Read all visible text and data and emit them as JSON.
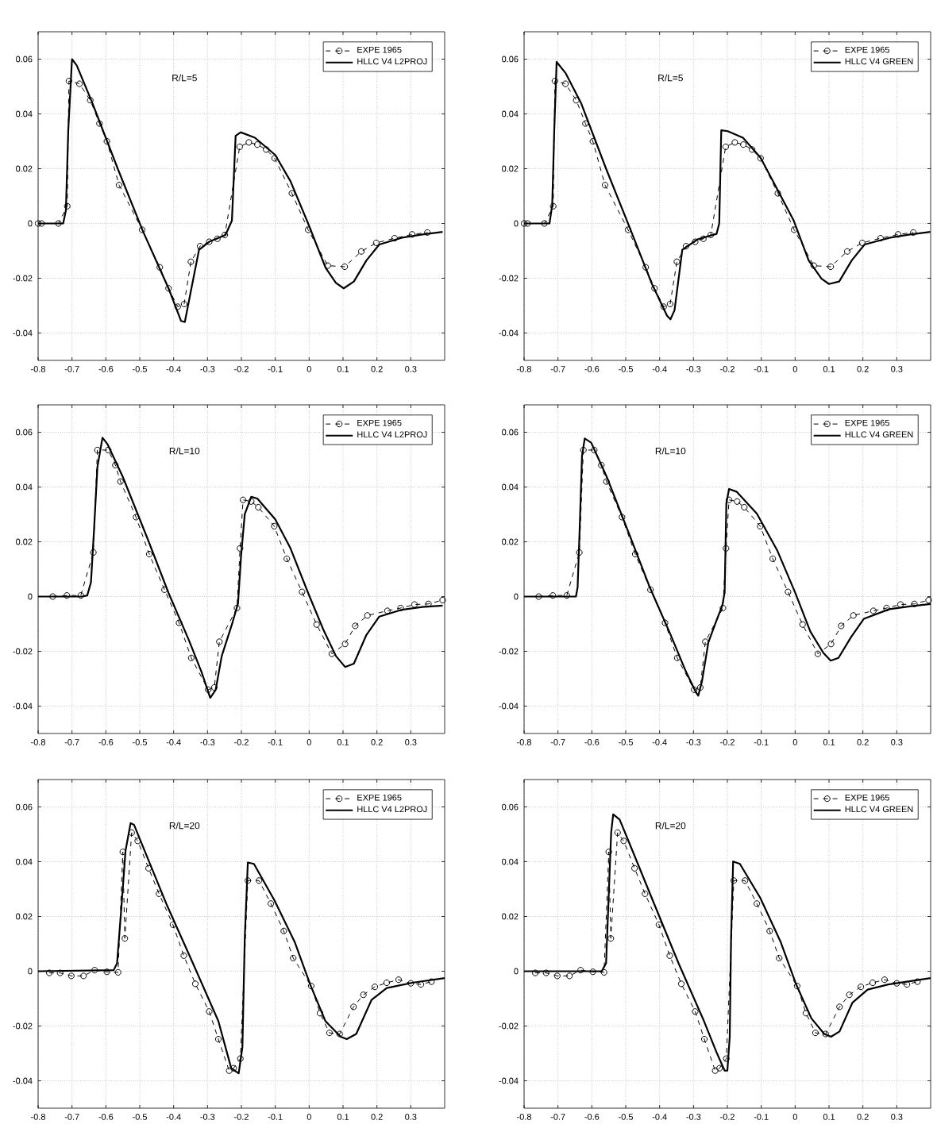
{
  "chart_data": [
    {
      "type": "line",
      "xlim": [
        -0.8,
        0.4
      ],
      "ylim": [
        -0.05,
        0.07
      ],
      "xticks": [
        -0.8,
        -0.7,
        -0.6,
        -0.5,
        -0.4,
        -0.3,
        -0.2,
        -0.1,
        0,
        0.1,
        0.2,
        0.3
      ],
      "yticks": [
        -0.04,
        -0.02,
        0,
        0.02,
        0.04,
        0.06
      ],
      "grid": true,
      "legend": "top right",
      "annotations": [
        "R/L=5"
      ],
      "series": [
        {
          "name": "EXPE 1965",
          "color": "#000000",
          "marker": "circle",
          "line_style": "dashed",
          "x": [
            -0.8,
            -0.79,
            -0.74,
            -0.714,
            -0.709,
            -0.678,
            -0.646,
            -0.619,
            -0.597,
            -0.561,
            -0.493,
            -0.441,
            -0.415,
            -0.388,
            -0.369,
            -0.349,
            -0.322,
            -0.295,
            -0.271,
            -0.249,
            -0.205,
            -0.178,
            -0.153,
            -0.127,
            -0.102,
            -0.051,
            -0.003,
            0.055,
            0.105,
            0.154,
            0.198,
            0.252,
            0.304,
            0.349
          ],
          "values": [
            0,
            0,
            0,
            0.0063,
            0.052,
            0.051,
            0.045,
            0.0365,
            0.03,
            0.014,
            -0.0023,
            -0.016,
            -0.0237,
            -0.0304,
            -0.0294,
            -0.014,
            -0.0083,
            -0.0067,
            -0.0056,
            -0.0042,
            0.028,
            0.0296,
            0.0288,
            0.027,
            0.0238,
            0.011,
            -0.0023,
            -0.0154,
            -0.0158,
            -0.0102,
            -0.0071,
            -0.0054,
            -0.004,
            -0.0033
          ]
        },
        {
          "name": "HLLC V4 L2PROJ",
          "color": "#000000",
          "marker": "none",
          "line_style": "solid",
          "x": [
            -0.8,
            -0.726,
            -0.718,
            -0.711,
            -0.7,
            -0.686,
            -0.64,
            -0.565,
            -0.49,
            -0.415,
            -0.378,
            -0.367,
            -0.348,
            -0.325,
            -0.295,
            -0.247,
            -0.228,
            -0.217,
            -0.202,
            -0.16,
            -0.1,
            -0.055,
            -0.003,
            0.049,
            0.079,
            0.102,
            0.132,
            0.169,
            0.207,
            0.274,
            0.334,
            0.394
          ],
          "values": [
            0,
            0,
            0.0048,
            0.034,
            0.06,
            0.0577,
            0.044,
            0.02,
            -0.003,
            -0.0237,
            -0.0356,
            -0.036,
            -0.024,
            -0.0096,
            -0.0067,
            -0.0042,
            0.001,
            0.032,
            0.0333,
            0.0313,
            0.025,
            0.0154,
            0,
            -0.0163,
            -0.0217,
            -0.0237,
            -0.0212,
            -0.0135,
            -0.0077,
            -0.0052,
            -0.004,
            -0.0031
          ]
        }
      ]
    },
    {
      "type": "line",
      "xlim": [
        -0.8,
        0.4
      ],
      "ylim": [
        -0.05,
        0.07
      ],
      "xticks": [
        -0.8,
        -0.7,
        -0.6,
        -0.5,
        -0.4,
        -0.3,
        -0.2,
        -0.1,
        0,
        0.1,
        0.2,
        0.3
      ],
      "yticks": [
        -0.04,
        -0.02,
        0,
        0.02,
        0.04,
        0.06
      ],
      "grid": true,
      "legend": "top right",
      "annotations": [
        "R/L=5"
      ],
      "series": [
        {
          "name": "EXPE 1965",
          "color": "#000000",
          "marker": "circle",
          "line_style": "dashed",
          "x": [
            -0.8,
            -0.79,
            -0.74,
            -0.714,
            -0.709,
            -0.678,
            -0.646,
            -0.619,
            -0.597,
            -0.561,
            -0.493,
            -0.441,
            -0.415,
            -0.388,
            -0.369,
            -0.349,
            -0.322,
            -0.295,
            -0.271,
            -0.249,
            -0.205,
            -0.178,
            -0.153,
            -0.127,
            -0.102,
            -0.051,
            -0.003,
            0.055,
            0.105,
            0.154,
            0.198,
            0.252,
            0.304,
            0.349
          ],
          "values": [
            0,
            0,
            0,
            0.0063,
            0.052,
            0.051,
            0.045,
            0.0365,
            0.03,
            0.014,
            -0.0023,
            -0.016,
            -0.0237,
            -0.0304,
            -0.0294,
            -0.014,
            -0.0083,
            -0.0067,
            -0.0056,
            -0.0042,
            0.028,
            0.0296,
            0.0288,
            0.027,
            0.0238,
            0.011,
            -0.0023,
            -0.0154,
            -0.0158,
            -0.0102,
            -0.0071,
            -0.0054,
            -0.004,
            -0.0033
          ]
        },
        {
          "name": "HLLC V4 GREEN",
          "color": "#000000",
          "marker": "none",
          "line_style": "solid",
          "x": [
            -0.8,
            -0.725,
            -0.717,
            -0.711,
            -0.704,
            -0.677,
            -0.632,
            -0.558,
            -0.49,
            -0.423,
            -0.378,
            -0.368,
            -0.356,
            -0.333,
            -0.288,
            -0.232,
            -0.224,
            -0.218,
            -0.199,
            -0.154,
            -0.102,
            -0.057,
            -0.004,
            0.04,
            0.078,
            0.1,
            0.13,
            0.167,
            0.205,
            0.28,
            0.339,
            0.399
          ],
          "values": [
            0,
            0,
            0.0067,
            0.034,
            0.059,
            0.0548,
            0.044,
            0.02,
            -0.001,
            -0.022,
            -0.0337,
            -0.035,
            -0.0317,
            -0.0096,
            -0.0058,
            -0.0038,
            0,
            0.034,
            0.0337,
            0.0313,
            0.024,
            0.0135,
            0.001,
            -0.0135,
            -0.0202,
            -0.0221,
            -0.0212,
            -0.0135,
            -0.0077,
            -0.0052,
            -0.004,
            -0.0031
          ]
        }
      ]
    },
    {
      "type": "line",
      "xlim": [
        -0.8,
        0.4
      ],
      "ylim": [
        -0.05,
        0.07
      ],
      "xticks": [
        -0.8,
        -0.7,
        -0.6,
        -0.5,
        -0.4,
        -0.3,
        -0.2,
        -0.1,
        0,
        0.1,
        0.2,
        0.3
      ],
      "yticks": [
        -0.04,
        -0.02,
        0,
        0.02,
        0.04,
        0.06
      ],
      "grid": true,
      "legend": "top right",
      "annotations": [
        "R/L=10"
      ],
      "series": [
        {
          "name": "EXPE 1965",
          "color": "#000000",
          "marker": "circle",
          "line_style": "dashed",
          "x": [
            -0.757,
            -0.715,
            -0.674,
            -0.637,
            -0.625,
            -0.593,
            -0.572,
            -0.557,
            -0.511,
            -0.472,
            -0.427,
            -0.384,
            -0.348,
            -0.298,
            -0.28,
            -0.265,
            -0.213,
            -0.204,
            -0.195,
            -0.171,
            -0.15,
            -0.103,
            -0.066,
            -0.021,
            0.022,
            0.067,
            0.106,
            0.136,
            0.172,
            0.231,
            0.27,
            0.311,
            0.352,
            0.394
          ],
          "values": [
            0,
            0.0004,
            0.0004,
            0.0161,
            0.0535,
            0.0535,
            0.048,
            0.042,
            0.029,
            0.0155,
            0.0025,
            -0.0096,
            -0.0224,
            -0.034,
            -0.0332,
            -0.0165,
            -0.0042,
            0.0176,
            0.0353,
            0.0347,
            0.0326,
            0.0257,
            0.0138,
            0.0017,
            -0.0102,
            -0.0209,
            -0.0173,
            -0.0107,
            -0.0069,
            -0.0052,
            -0.0042,
            -0.0029,
            -0.0027,
            -0.0013
          ]
        },
        {
          "name": "HLLC V4 L2PROJ",
          "color": "#000000",
          "marker": "none",
          "line_style": "solid",
          "x": [
            -0.8,
            -0.67,
            -0.655,
            -0.644,
            -0.635,
            -0.625,
            -0.61,
            -0.595,
            -0.55,
            -0.475,
            -0.415,
            -0.355,
            -0.318,
            -0.292,
            -0.276,
            -0.258,
            -0.228,
            -0.21,
            -0.201,
            -0.19,
            -0.171,
            -0.153,
            -0.1,
            -0.055,
            -0.003,
            0.042,
            0.079,
            0.106,
            0.132,
            0.169,
            0.207,
            0.274,
            0.334,
            0.394
          ],
          "values": [
            0,
            0,
            0.0004,
            0.0052,
            0.0243,
            0.0473,
            0.058,
            0.0556,
            0.0437,
            0.0205,
            0.0013,
            -0.0159,
            -0.0274,
            -0.037,
            -0.0341,
            -0.0217,
            -0.0102,
            -0.0025,
            0.0148,
            0.0301,
            0.0364,
            0.0358,
            0.0282,
            0.0176,
            0.0013,
            -0.0121,
            -0.0217,
            -0.0257,
            -0.0245,
            -0.014,
            -0.0073,
            -0.0048,
            -0.0038,
            -0.0033
          ]
        }
      ]
    },
    {
      "type": "line",
      "xlim": [
        -0.8,
        0.4
      ],
      "ylim": [
        -0.05,
        0.07
      ],
      "xticks": [
        -0.8,
        -0.7,
        -0.6,
        -0.5,
        -0.4,
        -0.3,
        -0.2,
        -0.1,
        0,
        0.1,
        0.2,
        0.3
      ],
      "yticks": [
        -0.04,
        -0.02,
        0,
        0.02,
        0.04,
        0.06
      ],
      "grid": true,
      "legend": "top right",
      "annotations": [
        "R/L=10"
      ],
      "series": [
        {
          "name": "EXPE 1965",
          "color": "#000000",
          "marker": "circle",
          "line_style": "dashed",
          "x": [
            -0.757,
            -0.715,
            -0.674,
            -0.637,
            -0.625,
            -0.593,
            -0.572,
            -0.557,
            -0.511,
            -0.472,
            -0.427,
            -0.384,
            -0.348,
            -0.298,
            -0.28,
            -0.265,
            -0.213,
            -0.204,
            -0.195,
            -0.171,
            -0.15,
            -0.103,
            -0.066,
            -0.021,
            0.022,
            0.067,
            0.106,
            0.136,
            0.172,
            0.231,
            0.27,
            0.311,
            0.352,
            0.394
          ],
          "values": [
            0,
            0.0004,
            0.0004,
            0.0161,
            0.0535,
            0.0535,
            0.048,
            0.042,
            0.029,
            0.0155,
            0.0025,
            -0.0096,
            -0.0224,
            -0.034,
            -0.0332,
            -0.0165,
            -0.0042,
            0.0176,
            0.0353,
            0.0347,
            0.0326,
            0.0257,
            0.0138,
            0.0017,
            -0.0102,
            -0.0209,
            -0.0173,
            -0.0107,
            -0.0069,
            -0.0052,
            -0.0042,
            -0.0029,
            -0.0027,
            -0.0013
          ]
        },
        {
          "name": "HLLC V4 GREEN",
          "color": "#000000",
          "marker": "none",
          "line_style": "solid",
          "x": [
            -0.8,
            -0.647,
            -0.642,
            -0.636,
            -0.629,
            -0.621,
            -0.602,
            -0.556,
            -0.489,
            -0.429,
            -0.368,
            -0.323,
            -0.293,
            -0.286,
            -0.275,
            -0.256,
            -0.233,
            -0.215,
            -0.208,
            -0.203,
            -0.195,
            -0.173,
            -0.113,
            -0.053,
            0,
            0.045,
            0.083,
            0.105,
            0.128,
            0.165,
            0.203,
            0.278,
            0.338,
            0.4
          ],
          "values": [
            0,
            0,
            0.0034,
            0.0245,
            0.0514,
            0.0577,
            0.0562,
            0.0437,
            0.0226,
            0.0034,
            -0.0138,
            -0.0272,
            -0.0349,
            -0.0362,
            -0.031,
            -0.0167,
            -0.009,
            -0.0033,
            0.0015,
            0.0341,
            0.0393,
            0.0383,
            0.0303,
            0.0169,
            0.0015,
            -0.0128,
            -0.0205,
            -0.0234,
            -0.0224,
            -0.0148,
            -0.0081,
            -0.0046,
            -0.0036,
            -0.0027
          ]
        }
      ]
    },
    {
      "type": "line",
      "xlim": [
        -0.8,
        0.4
      ],
      "ylim": [
        -0.05,
        0.07
      ],
      "xticks": [
        -0.8,
        -0.7,
        -0.6,
        -0.5,
        -0.4,
        -0.3,
        -0.2,
        -0.1,
        0,
        0.1,
        0.2,
        0.3
      ],
      "yticks": [
        -0.04,
        -0.02,
        0,
        0.02,
        0.04,
        0.06
      ],
      "grid": true,
      "legend": "top right",
      "annotations": [
        "R/L=20"
      ],
      "series": [
        {
          "name": "EXPE 1965",
          "color": "#000000",
          "marker": "circle",
          "line_style": "dashed",
          "x": [
            -0.767,
            -0.735,
            -0.702,
            -0.666,
            -0.633,
            -0.597,
            -0.564,
            -0.55,
            -0.544,
            -0.524,
            -0.506,
            -0.474,
            -0.443,
            -0.402,
            -0.37,
            -0.336,
            -0.295,
            -0.268,
            -0.236,
            -0.223,
            -0.203,
            -0.181,
            -0.148,
            -0.113,
            -0.075,
            -0.047,
            0.006,
            0.032,
            0.06,
            0.09,
            0.131,
            0.16,
            0.194,
            0.229,
            0.264,
            0.3,
            0.33,
            0.361
          ],
          "values": [
            -0.0006,
            -0.0006,
            -0.0017,
            -0.0017,
            0.0004,
            -0.0002,
            -0.0004,
            0.0436,
            0.012,
            0.0506,
            0.0476,
            0.0376,
            0.0283,
            0.017,
            0.0057,
            -0.0046,
            -0.0147,
            -0.0248,
            -0.0363,
            -0.0354,
            -0.0319,
            0.0331,
            0.0331,
            0.0247,
            0.0147,
            0.0048,
            -0.0054,
            -0.0153,
            -0.0225,
            -0.0229,
            -0.013,
            -0.0086,
            -0.0057,
            -0.0042,
            -0.0031,
            -0.0044,
            -0.0048,
            -0.0038
          ]
        },
        {
          "name": "HLLC V4 L2PROJ",
          "color": "#000000",
          "marker": "none",
          "line_style": "solid",
          "x": [
            -0.8,
            -0.577,
            -0.567,
            -0.555,
            -0.542,
            -0.527,
            -0.517,
            -0.479,
            -0.419,
            -0.343,
            -0.268,
            -0.23,
            -0.208,
            -0.197,
            -0.19,
            -0.181,
            -0.163,
            -0.102,
            -0.042,
            0.003,
            0.048,
            0.093,
            0.111,
            0.139,
            0.184,
            0.229,
            0.304,
            0.4
          ],
          "values": [
            0,
            0.0004,
            0.0029,
            0.022,
            0.044,
            0.0541,
            0.0535,
            0.042,
            0.0239,
            0.0029,
            -0.0182,
            -0.0354,
            -0.0373,
            -0.0277,
            0.0124,
            0.0397,
            0.0392,
            0.0258,
            0.0105,
            -0.0048,
            -0.0182,
            -0.0239,
            -0.0248,
            -0.0229,
            -0.0105,
            -0.0061,
            -0.0042,
            -0.0025
          ]
        }
      ]
    },
    {
      "type": "line",
      "xlim": [
        -0.8,
        0.4
      ],
      "ylim": [
        -0.05,
        0.07
      ],
      "xticks": [
        -0.8,
        -0.7,
        -0.6,
        -0.5,
        -0.4,
        -0.3,
        -0.2,
        -0.1,
        0,
        0.1,
        0.2,
        0.3
      ],
      "yticks": [
        -0.04,
        -0.02,
        0,
        0.02,
        0.04,
        0.06
      ],
      "grid": true,
      "legend": "top right",
      "annotations": [
        "R/L=20"
      ],
      "series": [
        {
          "name": "EXPE 1965",
          "color": "#000000",
          "marker": "circle",
          "line_style": "dashed",
          "x": [
            -0.767,
            -0.735,
            -0.702,
            -0.666,
            -0.633,
            -0.597,
            -0.564,
            -0.55,
            -0.544,
            -0.524,
            -0.506,
            -0.474,
            -0.443,
            -0.402,
            -0.37,
            -0.336,
            -0.295,
            -0.268,
            -0.236,
            -0.223,
            -0.203,
            -0.181,
            -0.148,
            -0.113,
            -0.075,
            -0.047,
            0.006,
            0.032,
            0.06,
            0.09,
            0.131,
            0.16,
            0.194,
            0.229,
            0.264,
            0.3,
            0.33,
            0.361
          ],
          "values": [
            -0.0006,
            -0.0006,
            -0.0017,
            -0.0017,
            0.0004,
            -0.0002,
            -0.0004,
            0.0436,
            0.012,
            0.0506,
            0.0476,
            0.0376,
            0.0283,
            0.017,
            0.0057,
            -0.0046,
            -0.0147,
            -0.0248,
            -0.0363,
            -0.0354,
            -0.0319,
            0.0331,
            0.0331,
            0.0247,
            0.0147,
            0.0048,
            -0.0054,
            -0.0153,
            -0.0225,
            -0.0229,
            -0.013,
            -0.0086,
            -0.0057,
            -0.0042,
            -0.0031,
            -0.0044,
            -0.0048,
            -0.0038
          ]
        },
        {
          "name": "HLLC V4 GREEN",
          "color": "#000000",
          "marker": "none",
          "line_style": "solid",
          "x": [
            -0.8,
            -0.571,
            -0.558,
            -0.552,
            -0.543,
            -0.537,
            -0.518,
            -0.48,
            -0.42,
            -0.344,
            -0.269,
            -0.232,
            -0.208,
            -0.2,
            -0.193,
            -0.189,
            -0.183,
            -0.163,
            -0.103,
            -0.042,
            0.003,
            0.048,
            0.086,
            0.106,
            0.131,
            0.169,
            0.214,
            0.275,
            0.4
          ],
          "values": [
            0,
            0,
            0.0029,
            0.022,
            0.0506,
            0.0573,
            0.0554,
            0.044,
            0.0258,
            0.0029,
            -0.0182,
            -0.0296,
            -0.0363,
            -0.0363,
            -0.0239,
            0.0124,
            0.0401,
            0.0392,
            0.0268,
            0.0105,
            -0.0048,
            -0.0172,
            -0.0229,
            -0.0239,
            -0.022,
            -0.0115,
            -0.0067,
            -0.0048,
            -0.0025
          ]
        }
      ]
    }
  ]
}
